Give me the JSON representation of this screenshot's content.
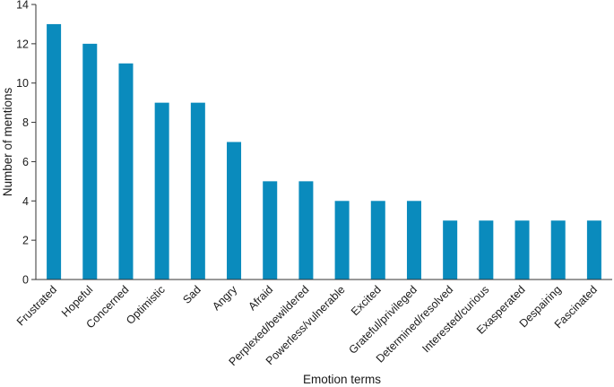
{
  "chart_data": {
    "type": "bar",
    "title": "",
    "xlabel": "Emotion terms",
    "ylabel": "Number of mentions",
    "ylim": [
      0,
      14
    ],
    "yticks": [
      0,
      2,
      4,
      6,
      8,
      10,
      12,
      14
    ],
    "grid": false,
    "bar_color": "#0a8bbd",
    "categories": [
      "Frustrated",
      "Hopeful",
      "Concerned",
      "Optimistic",
      "Sad",
      "Angry",
      "Afraid",
      "Perplexed/bewildered",
      "Powerless/vulnerable",
      "Excited",
      "Grateful/privileged",
      "Determined/resolved",
      "Interested/curious",
      "Exasperated",
      "Despairing",
      "Fascinated"
    ],
    "values": [
      13,
      12,
      11,
      9,
      9,
      7,
      5,
      5,
      4,
      4,
      4,
      3,
      3,
      3,
      3,
      3
    ]
  }
}
